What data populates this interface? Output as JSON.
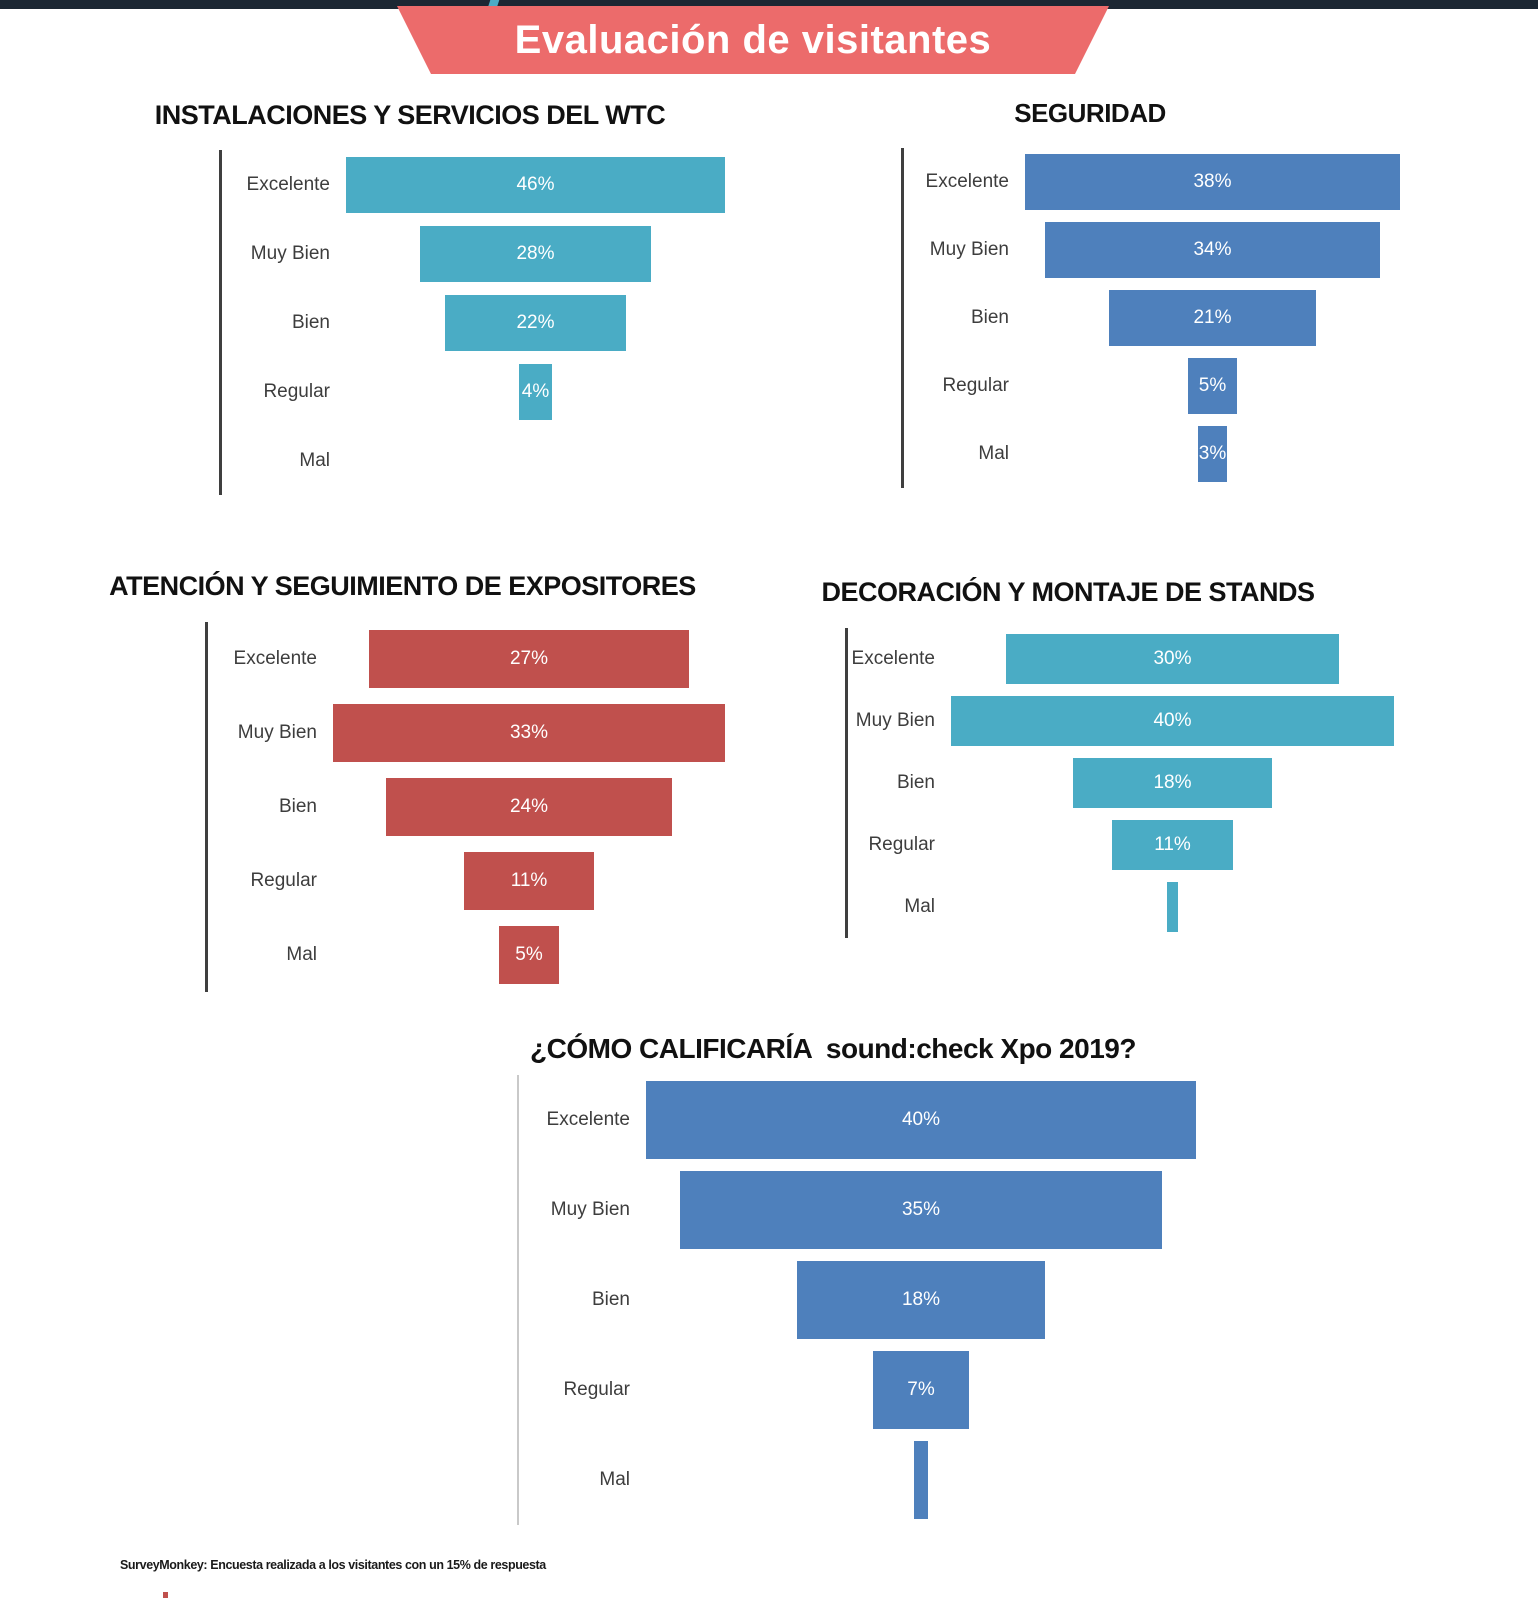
{
  "page": {
    "banner_title": "Evaluación de visitantes",
    "footer_source": "SurveyMonkey: Encuesta realizada a los visitantes con un 15% de respuesta"
  },
  "colors": {
    "top_bar": "#1C2733",
    "banner": "#EC6B6B",
    "teal": "#4AACC5",
    "blue": "#4E80BC",
    "red": "#C0504D",
    "axis_dark": "#3F3F3F",
    "axis_light": "#C9C9C9",
    "bar_label": "#FFFFFF"
  },
  "chart_data": [
    {
      "type": "bar",
      "variant": "horizontal-centered-funnel",
      "title": "INSTALACIONES Y SERVICIOS DEL WTC",
      "categories": [
        "Excelente",
        "Muy Bien",
        "Bien",
        "Regular",
        "Mal"
      ],
      "values": [
        46,
        28,
        22,
        4,
        0
      ],
      "value_labels": [
        "46%",
        "28%",
        "22%",
        "4%",
        ""
      ],
      "color": "#4AACC5",
      "axis_color": "#3F3F3F",
      "grid": false,
      "legend": false
    },
    {
      "type": "bar",
      "variant": "horizontal-centered-funnel",
      "title": "SEGURIDAD",
      "categories": [
        "Excelente",
        "Muy Bien",
        "Bien",
        "Regular",
        "Mal"
      ],
      "values": [
        38,
        34,
        21,
        5,
        3
      ],
      "value_labels": [
        "38%",
        "34%",
        "21%",
        "5%",
        "3%"
      ],
      "color": "#4E80BC",
      "axis_color": "#3F3F3F",
      "grid": false,
      "legend": false
    },
    {
      "type": "bar",
      "variant": "horizontal-centered-funnel",
      "title": "ATENCIÓN Y SEGUIMIENTO DE EXPOSITORES",
      "categories": [
        "Excelente",
        "Muy Bien",
        "Bien",
        "Regular",
        "Mal"
      ],
      "values": [
        27,
        33,
        24,
        11,
        5
      ],
      "value_labels": [
        "27%",
        "33%",
        "24%",
        "11%",
        "5%"
      ],
      "color": "#C0504D",
      "axis_color": "#3F3F3F",
      "grid": false,
      "legend": false
    },
    {
      "type": "bar",
      "variant": "horizontal-centered-funnel",
      "title": "DECORACIÓN Y MONTAJE DE STANDS",
      "categories": [
        "Excelente",
        "Muy Bien",
        "Bien",
        "Regular",
        "Mal"
      ],
      "values": [
        30,
        40,
        18,
        11,
        1
      ],
      "value_labels": [
        "30%",
        "40%",
        "18%",
        "11%",
        ""
      ],
      "color": "#4AACC5",
      "axis_color": "#3F3F3F",
      "grid": false,
      "legend": false
    },
    {
      "type": "bar",
      "variant": "horizontal-centered-funnel",
      "title": "¿CÓMO CALIFICARÍA  sound:check Xpo 2019?",
      "categories": [
        "Excelente",
        "Muy Bien",
        "Bien",
        "Regular",
        "Mal"
      ],
      "values": [
        40,
        35,
        18,
        7,
        1
      ],
      "value_labels": [
        "40%",
        "35%",
        "18%",
        "7%",
        ""
      ],
      "color": "#4E80BC",
      "axis_color": "#C9C9C9",
      "grid": false,
      "legend": false
    }
  ]
}
